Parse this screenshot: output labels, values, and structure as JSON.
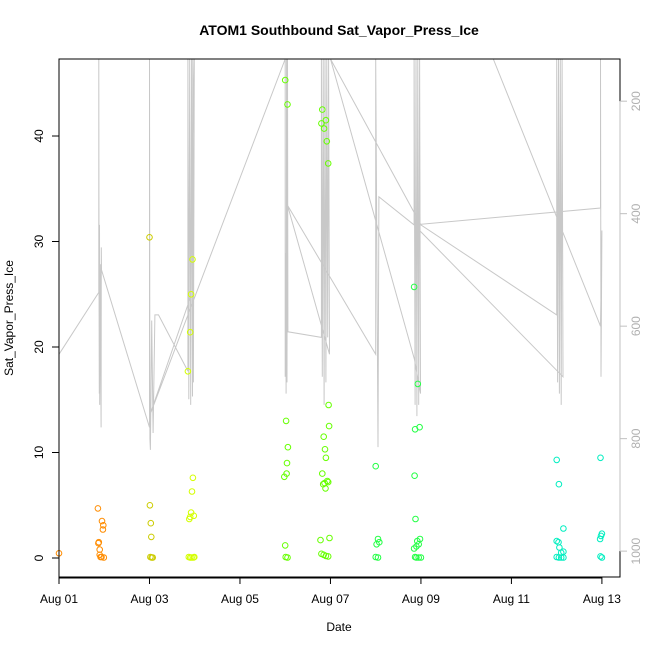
{
  "chart_data": {
    "type": "scatter",
    "title": "ATOM1 Southbound Sat_Vapor_Press_Ice",
    "xlabel": "Date",
    "ylabel": "Sat_Vapor_Press_Ice",
    "xlim": [
      0,
      12.4
    ],
    "ylim": [
      -1.8,
      47.3
    ],
    "x_ticks": [
      0,
      2,
      4,
      6,
      8,
      10,
      12
    ],
    "x_tick_labels": [
      "Aug 01",
      "Aug 03",
      "Aug 05",
      "Aug 07",
      "Aug 09",
      "Aug 11",
      "Aug 13"
    ],
    "y_ticks": [
      0,
      10,
      20,
      30,
      40
    ],
    "y2_ticks": [
      200,
      400,
      600,
      800,
      1000
    ],
    "y2_lim": [
      1046,
      125
    ],
    "y2_color": "#c0c0c0",
    "grid": false,
    "legend": "none",
    "scatter": {
      "series": [
        {
          "color": "#ff8c00",
          "points": [
            [
              0.0,
              0.45
            ],
            [
              0.86,
              4.7
            ],
            [
              0.87,
              1.4
            ],
            [
              0.88,
              1.5
            ],
            [
              0.9,
              0.8
            ],
            [
              0.92,
              0.1
            ],
            [
              0.94,
              0.1
            ],
            [
              0.95,
              3.5
            ],
            [
              0.97,
              2.7
            ],
            [
              0.98,
              3.1
            ],
            [
              0.99,
              0.05
            ],
            [
              0.9,
              0.3
            ]
          ]
        },
        {
          "color": "#cccc00",
          "points": [
            [
              2.0,
              30.4
            ],
            [
              2.01,
              5.0
            ],
            [
              2.03,
              3.3
            ],
            [
              2.04,
              2.0
            ],
            [
              2.02,
              0.1
            ],
            [
              2.05,
              0.05
            ],
            [
              2.07,
              0.05
            ]
          ]
        },
        {
          "color": "#d4ff00",
          "points": [
            [
              2.85,
              17.7
            ],
            [
              2.9,
              21.4
            ],
            [
              2.92,
              25.0
            ],
            [
              2.95,
              28.3
            ],
            [
              2.88,
              3.7
            ],
            [
              2.9,
              3.9
            ],
            [
              2.92,
              4.3
            ],
            [
              2.94,
              6.3
            ],
            [
              2.96,
              7.6
            ],
            [
              2.98,
              4.0
            ],
            [
              2.87,
              0.1
            ],
            [
              2.9,
              0.05
            ],
            [
              2.93,
              0.05
            ],
            [
              2.97,
              0.05
            ],
            [
              2.99,
              0.1
            ]
          ]
        },
        {
          "color": "#66ff00",
          "points": [
            [
              5.0,
              45.3
            ],
            [
              5.05,
              43.0
            ],
            [
              5.02,
              13.0
            ],
            [
              5.06,
              10.5
            ],
            [
              5.04,
              9.0
            ],
            [
              5.03,
              8.0
            ],
            [
              4.98,
              7.7
            ],
            [
              5.0,
              1.2
            ],
            [
              5.01,
              0.1
            ],
            [
              5.05,
              0.05
            ],
            [
              5.82,
              42.5
            ],
            [
              5.8,
              41.2
            ],
            [
              5.86,
              40.7
            ],
            [
              5.9,
              41.5
            ],
            [
              5.92,
              39.5
            ],
            [
              5.95,
              37.4
            ],
            [
              5.96,
              14.5
            ],
            [
              5.97,
              12.5
            ],
            [
              5.85,
              11.5
            ],
            [
              5.88,
              10.3
            ],
            [
              5.9,
              9.5
            ],
            [
              5.82,
              8.0
            ],
            [
              5.84,
              7.0
            ],
            [
              5.87,
              7.1
            ],
            [
              5.89,
              6.6
            ],
            [
              5.93,
              7.3
            ],
            [
              5.95,
              7.2
            ],
            [
              5.78,
              1.7
            ],
            [
              5.98,
              1.9
            ],
            [
              5.8,
              0.4
            ],
            [
              5.85,
              0.3
            ],
            [
              5.9,
              0.2
            ],
            [
              5.95,
              0.15
            ]
          ]
        },
        {
          "color": "#22ff44",
          "points": [
            [
              7.0,
              8.7
            ],
            [
              7.02,
              1.3
            ],
            [
              7.05,
              1.8
            ],
            [
              7.08,
              1.5
            ],
            [
              7.0,
              0.1
            ],
            [
              7.05,
              0.05
            ],
            [
              7.85,
              25.7
            ],
            [
              7.93,
              16.5
            ],
            [
              7.87,
              12.2
            ],
            [
              7.97,
              12.4
            ],
            [
              7.86,
              7.8
            ],
            [
              7.88,
              3.7
            ],
            [
              7.85,
              0.9
            ],
            [
              7.9,
              1.1
            ],
            [
              7.95,
              1.3
            ],
            [
              7.98,
              1.8
            ],
            [
              7.92,
              1.6
            ],
            [
              7.87,
              0.1
            ],
            [
              7.9,
              0.05
            ],
            [
              7.95,
              0.05
            ],
            [
              8.0,
              0.05
            ]
          ]
        },
        {
          "color": "#00eec0",
          "points": [
            [
              11.0,
              9.3
            ],
            [
              11.05,
              7.0
            ],
            [
              11.15,
              2.8
            ],
            [
              11.0,
              1.6
            ],
            [
              11.04,
              1.5
            ],
            [
              11.06,
              1.0
            ],
            [
              11.1,
              0.5
            ],
            [
              11.15,
              0.6
            ],
            [
              11.0,
              0.1
            ],
            [
              11.05,
              0.05
            ],
            [
              11.1,
              0.05
            ],
            [
              11.15,
              0.05
            ],
            [
              11.97,
              9.5
            ],
            [
              11.98,
              2.1
            ],
            [
              12.0,
              2.3
            ],
            [
              11.96,
              1.8
            ],
            [
              11.97,
              0.15
            ],
            [
              12.0,
              0.05
            ]
          ]
        }
      ]
    },
    "pressure_line": {
      "color": "#c8c8c8",
      "points": [
        [
          0.0,
          650
        ],
        [
          0.88,
          540
        ],
        [
          0.88,
          125
        ],
        [
          0.885,
          500
        ],
        [
          0.89,
          720
        ],
        [
          0.895,
          420
        ],
        [
          0.9,
          740
        ],
        [
          0.91,
          490
        ],
        [
          0.93,
          780
        ],
        [
          0.935,
          460
        ],
        [
          0.94,
          500
        ],
        [
          2.0,
          780
        ],
        [
          2.0,
          125
        ],
        [
          2.01,
          800
        ],
        [
          2.02,
          820
        ],
        [
          2.05,
          590
        ],
        [
          2.08,
          790
        ],
        [
          2.12,
          580
        ],
        [
          2.2,
          580
        ],
        [
          2.85,
          680
        ],
        [
          2.85,
          125
        ],
        [
          2.87,
          730
        ],
        [
          2.89,
          125
        ],
        [
          2.91,
          740
        ],
        [
          2.93,
          125
        ],
        [
          2.95,
          725
        ],
        [
          2.96,
          125
        ],
        [
          2.97,
          700
        ],
        [
          2.99,
          125
        ],
        [
          2.9,
          550
        ],
        [
          2.0,
          760
        ],
        [
          5.0,
          125
        ],
        [
          5.0,
          690
        ],
        [
          5.01,
          470
        ],
        [
          5.02,
          720
        ],
        [
          5.03,
          125
        ],
        [
          5.04,
          700
        ],
        [
          5.05,
          125
        ],
        [
          5.06,
          600
        ],
        [
          5.06,
          610
        ],
        [
          5.8,
          620
        ],
        [
          5.8,
          125
        ],
        [
          5.82,
          690
        ],
        [
          5.84,
          125
        ],
        [
          5.86,
          740
        ],
        [
          5.88,
          125
        ],
        [
          5.9,
          700
        ],
        [
          5.92,
          125
        ],
        [
          5.94,
          620
        ],
        [
          5.96,
          125
        ],
        [
          5.98,
          650
        ],
        [
          5.05,
          385
        ],
        [
          7.0,
          650
        ],
        [
          7.0,
          125
        ],
        [
          7.05,
          815
        ],
        [
          7.07,
          370
        ],
        [
          7.85,
          420
        ],
        [
          7.85,
          125
        ],
        [
          7.87,
          740
        ],
        [
          7.89,
          125
        ],
        [
          7.91,
          760
        ],
        [
          7.93,
          125
        ],
        [
          7.95,
          740
        ],
        [
          7.97,
          125
        ],
        [
          7.99,
          720
        ],
        [
          7.86,
          660
        ],
        [
          6.0,
          125
        ],
        [
          8.0,
          420
        ],
        [
          11.0,
          580
        ],
        [
          11.0,
          125
        ],
        [
          11.02,
          700
        ],
        [
          11.04,
          125
        ],
        [
          11.06,
          720
        ],
        [
          11.08,
          125
        ],
        [
          11.1,
          740
        ],
        [
          11.12,
          125
        ],
        [
          11.14,
          690
        ],
        [
          7.85,
          420
        ],
        [
          11.97,
          390
        ],
        [
          11.97,
          125
        ],
        [
          11.98,
          690
        ],
        [
          12.0,
          430
        ],
        [
          11.97,
          600
        ],
        [
          9.6,
          125
        ]
      ]
    }
  }
}
